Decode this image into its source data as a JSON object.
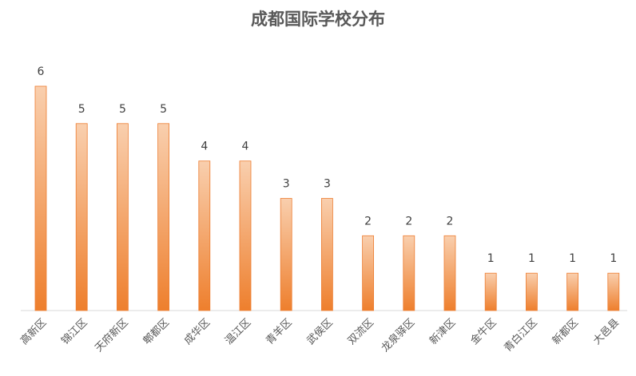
{
  "chart_data": {
    "type": "bar",
    "title": "成都国际学校分布",
    "xlabel": "",
    "ylabel": "",
    "categories": [
      "高新区",
      "锦江区",
      "天府新区",
      "郫都区",
      "成华区",
      "温江区",
      "青羊区",
      "武侯区",
      "双流区",
      "龙泉驿区",
      "新津区",
      "金牛区",
      "青白江区",
      "新都区",
      "大邑县"
    ],
    "values": [
      6,
      5,
      5,
      5,
      4,
      4,
      3,
      3,
      2,
      2,
      2,
      1,
      1,
      1,
      1
    ],
    "ylim": [
      0,
      6
    ],
    "grid": false,
    "legend": "none",
    "data_labels": true
  },
  "colors": {
    "bar_top": "#f9cfae",
    "bar_bottom": "#ee7f2d",
    "bar_border": "#ed7d31",
    "axis": "#d9d9d9"
  }
}
